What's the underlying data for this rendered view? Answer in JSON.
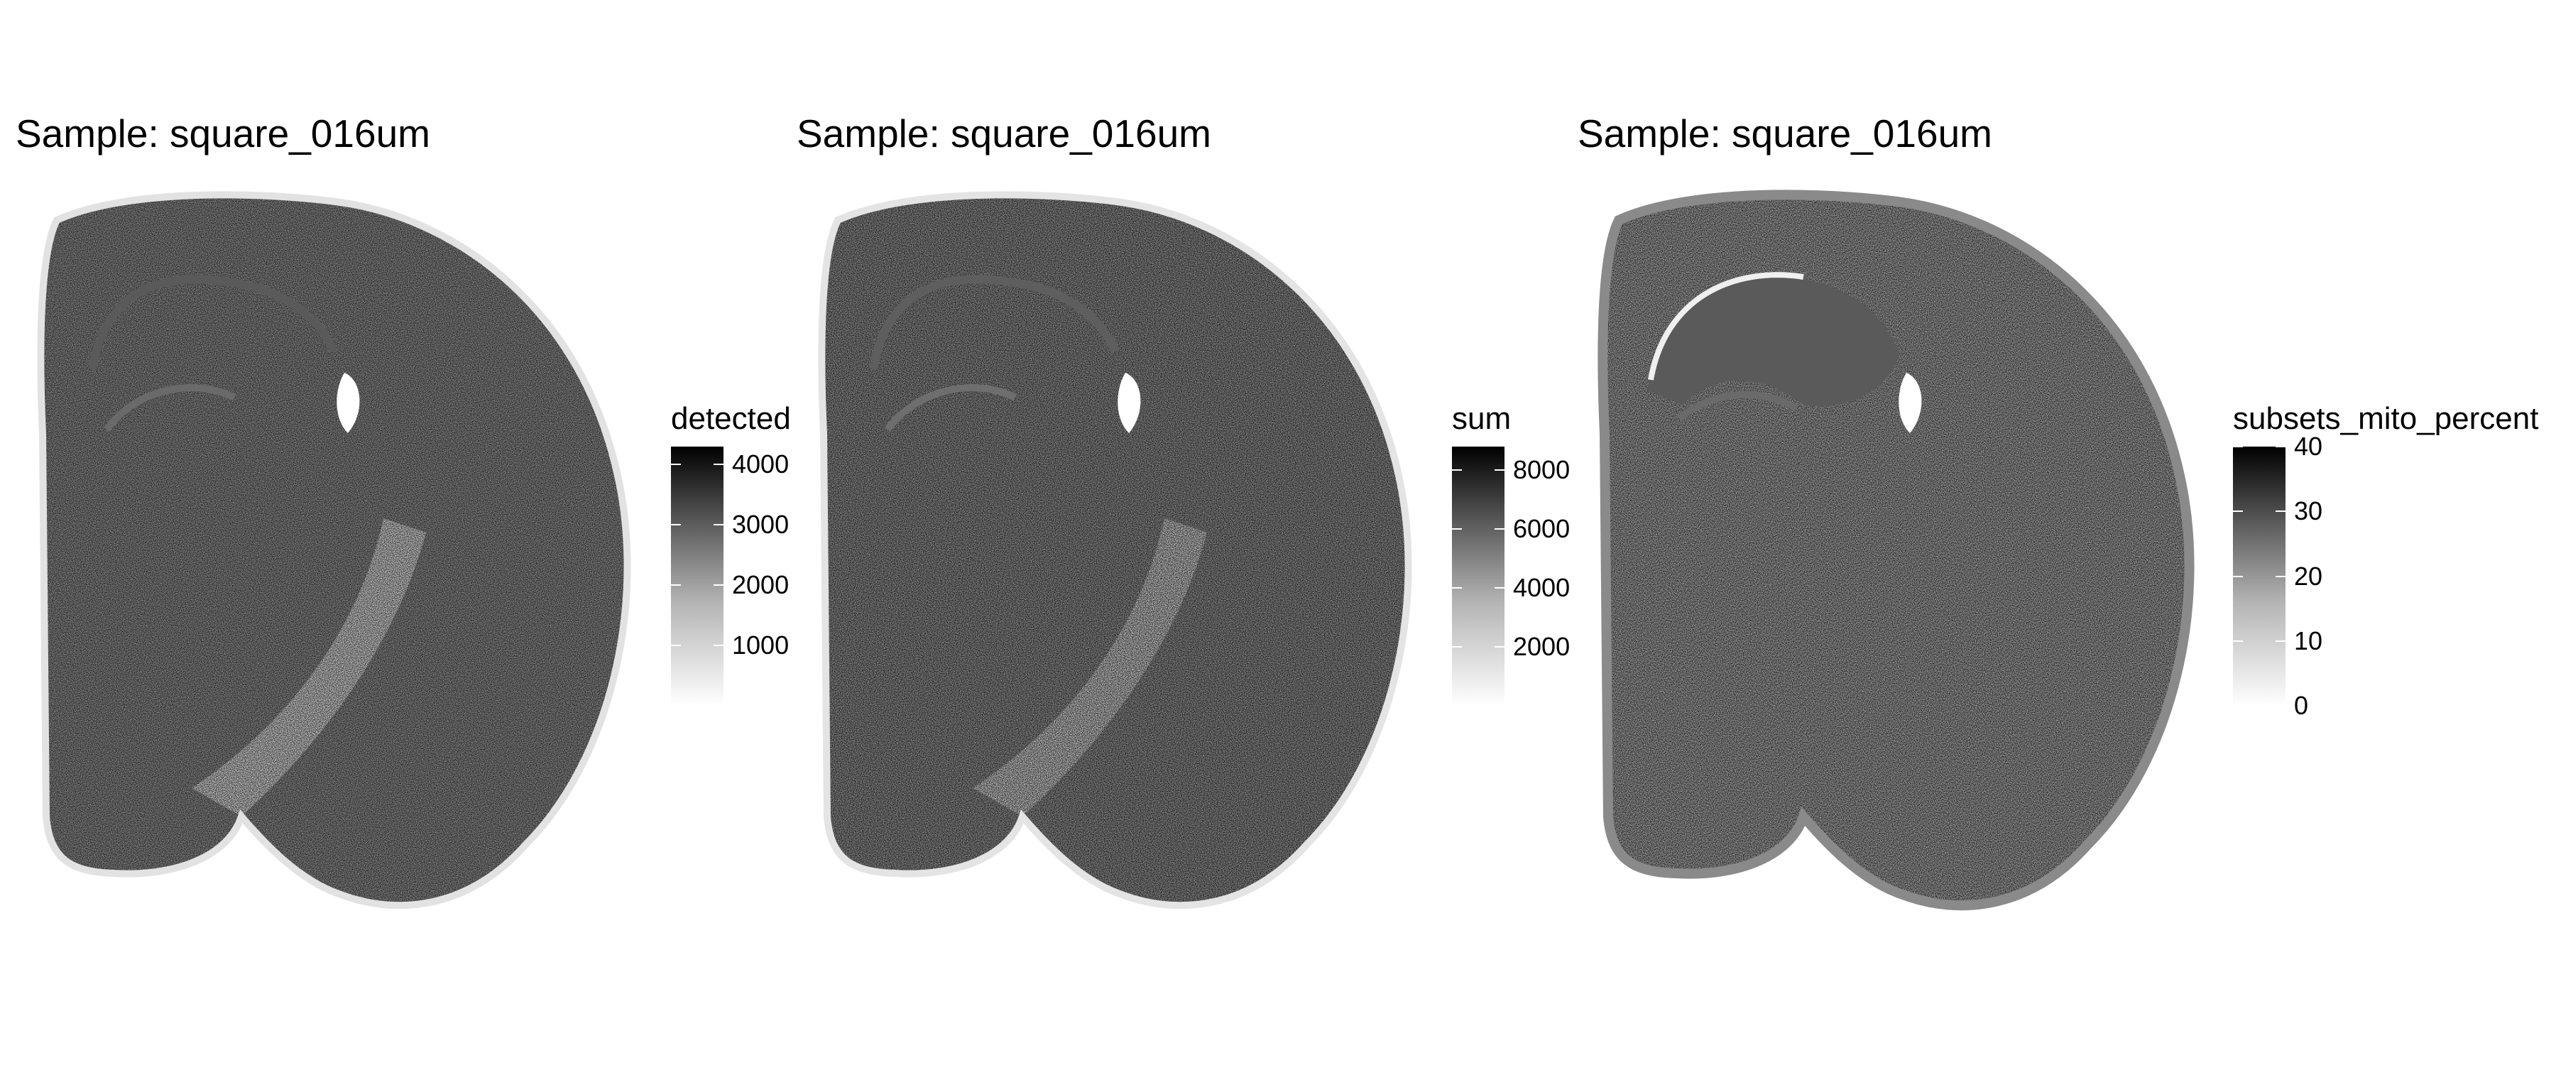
{
  "chart_data": [
    {
      "type": "heatmap",
      "title": "Sample: square_016um",
      "legend_title": "detected",
      "colorbar_ticks": [
        1000,
        2000,
        3000,
        4000
      ],
      "colorbar_range": [
        0,
        4300
      ],
      "colors": {
        "low": "#ffffff",
        "high": "#000000"
      }
    },
    {
      "type": "heatmap",
      "title": "Sample: square_016um",
      "legend_title": "sum",
      "colorbar_ticks": [
        2000,
        4000,
        6000,
        8000
      ],
      "colorbar_range": [
        0,
        8800
      ],
      "colors": {
        "low": "#ffffff",
        "high": "#000000"
      }
    },
    {
      "type": "heatmap",
      "title": "Sample: square_016um",
      "legend_title": "subsets_mito_percent",
      "colorbar_ticks": [
        0,
        10,
        20,
        30,
        40
      ],
      "colorbar_range": [
        0,
        40
      ],
      "colors": {
        "low": "#ffffff",
        "high": "#000000"
      }
    }
  ]
}
